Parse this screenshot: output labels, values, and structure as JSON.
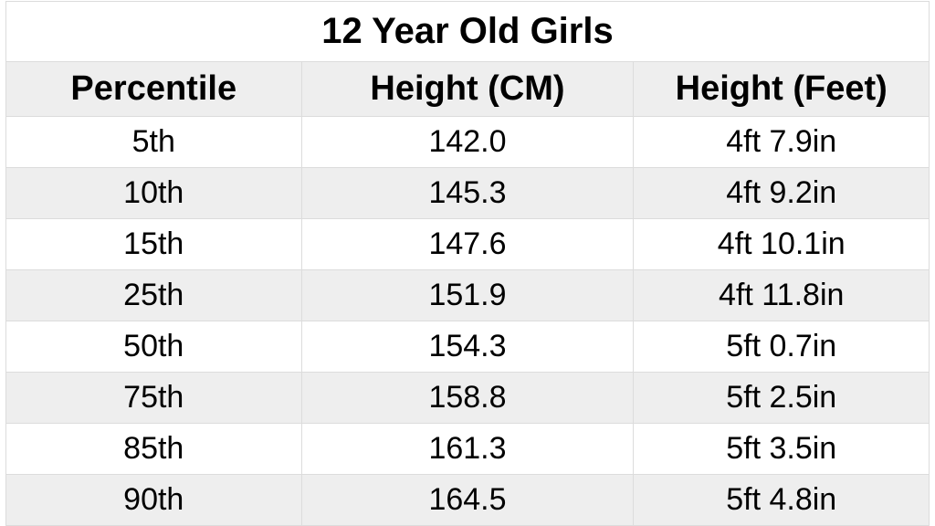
{
  "table": {
    "title": "12 Year Old Girls",
    "columns": [
      "Percentile",
      "Height (CM)",
      "Height (Feet)"
    ],
    "column_widths_pct": [
      32,
      36,
      32
    ],
    "rows": [
      [
        "5th",
        "142.0",
        "4ft 7.9in"
      ],
      [
        "10th",
        "145.3",
        "4ft 9.2in"
      ],
      [
        "15th",
        "147.6",
        "4ft 10.1in"
      ],
      [
        "25th",
        "151.9",
        "4ft 11.8in"
      ],
      [
        "50th",
        "154.3",
        "5ft 0.7in"
      ],
      [
        "75th",
        "158.8",
        "5ft 2.5in"
      ],
      [
        "85th",
        "161.3",
        "5ft 3.5in"
      ],
      [
        "90th",
        "164.5",
        "5ft 4.8in"
      ]
    ],
    "title_fontsize": 40,
    "header_fontsize": 38,
    "cell_fontsize": 34,
    "font_family": "Arial, Helvetica, sans-serif",
    "colors": {
      "background": "#ffffff",
      "row_alt_bg": "#eeeeee",
      "row_bg": "#ffffff",
      "header_bg": "#eeeeee",
      "border": "#dcdcdc",
      "text": "#000000"
    }
  }
}
